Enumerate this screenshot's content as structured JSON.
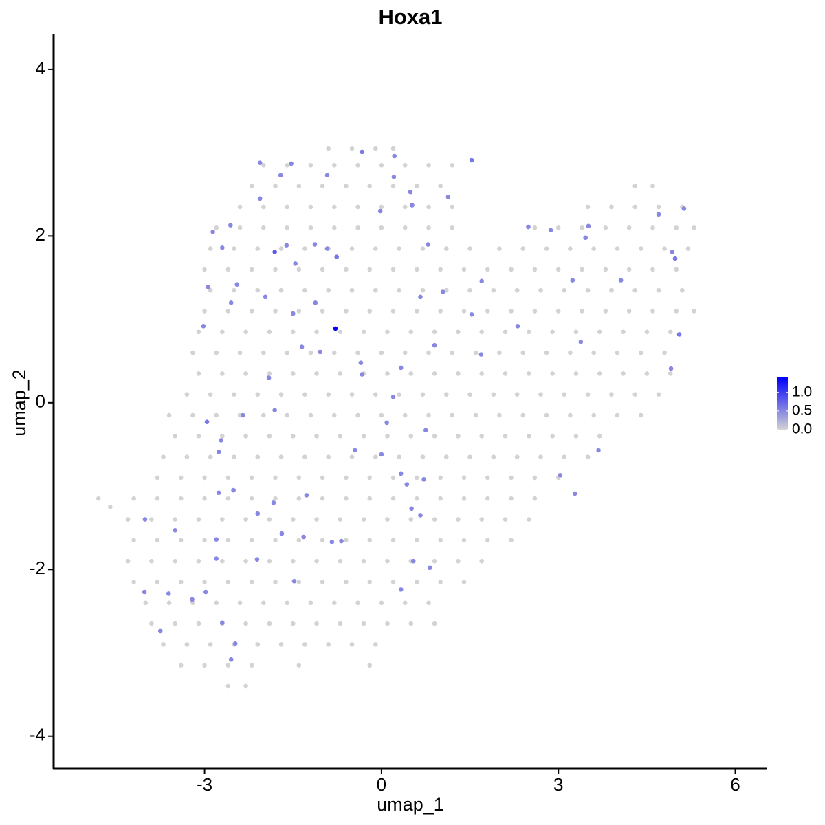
{
  "chart_data": {
    "type": "scatter",
    "title": "Hoxa1",
    "xlabel": "umap_1",
    "ylabel": "umap_2",
    "xlim": [
      -5.56,
      6.53
    ],
    "ylim": [
      -4.39,
      4.42
    ],
    "xticks": [
      -3,
      0,
      3,
      6
    ],
    "yticks": [
      -4,
      -2,
      0,
      2,
      4
    ],
    "colorbar": {
      "lim": [
        0,
        1.4
      ],
      "low": "#d3d3d3",
      "high": "#0000ff",
      "ticks": [
        {
          "value": 0,
          "label": "0.0"
        },
        {
          "value": 0.5,
          "label": "0.5"
        },
        {
          "value": 1,
          "label": "1.0"
        }
      ]
    },
    "series": [
      {
        "x": [
          -0.9,
          -0.5,
          -0.1,
          0.2,
          -2.0,
          -1.6,
          -1.2,
          -0.8,
          -0.4,
          0.0,
          0.4,
          0.8,
          1.2,
          -2.2,
          -1.8,
          -1.4,
          -1.0,
          -0.6,
          -0.2,
          0.2,
          0.6,
          1.0,
          4.3,
          4.6,
          -2.4,
          -2.0,
          -1.6,
          -1.2,
          -0.8,
          -0.4,
          0.0,
          0.4,
          0.8,
          1.2,
          3.5,
          3.9,
          4.3,
          4.7,
          5.1,
          -2.8,
          -2.4,
          -2.0,
          -1.6,
          -1.2,
          -0.8,
          -0.4,
          0.0,
          0.4,
          0.8,
          1.2,
          2.6,
          3.0,
          3.4,
          3.8,
          4.2,
          4.6,
          5.0,
          5.3,
          -2.9,
          -2.5,
          -2.1,
          -1.7,
          -1.3,
          -0.9,
          -0.5,
          -0.1,
          0.3,
          0.7,
          1.1,
          1.5,
          2.0,
          2.4,
          2.8,
          3.2,
          3.6,
          4.0,
          4.4,
          4.8,
          5.2,
          -3.0,
          -2.6,
          -2.2,
          -1.8,
          -1.4,
          -1.0,
          -0.6,
          -0.2,
          0.2,
          0.6,
          1.0,
          1.4,
          1.8,
          2.2,
          2.6,
          3.0,
          3.4,
          3.8,
          4.2,
          4.6,
          5.0,
          -2.9,
          -2.5,
          -2.1,
          -1.7,
          -1.3,
          -0.9,
          -0.5,
          -0.1,
          0.3,
          0.7,
          1.1,
          1.5,
          1.9,
          2.3,
          2.7,
          3.1,
          3.5,
          3.9,
          4.3,
          4.7,
          5.1,
          -3.0,
          -2.6,
          -2.2,
          -1.8,
          -1.4,
          -1.0,
          -0.6,
          -0.2,
          0.2,
          0.6,
          1.0,
          1.4,
          1.8,
          2.2,
          2.6,
          3.0,
          3.4,
          3.8,
          4.2,
          4.6,
          5.0,
          5.3,
          -3.1,
          -2.7,
          -2.3,
          -1.9,
          -1.5,
          -1.1,
          -0.7,
          -0.3,
          0.1,
          0.5,
          0.9,
          1.3,
          1.7,
          2.1,
          2.5,
          2.9,
          3.3,
          3.7,
          4.1,
          4.5,
          4.9,
          -3.2,
          -2.8,
          -2.4,
          -2.0,
          -1.6,
          -1.2,
          -0.8,
          -0.4,
          0.0,
          0.4,
          0.8,
          1.2,
          1.6,
          2.0,
          2.4,
          2.8,
          3.2,
          3.6,
          4.0,
          4.4,
          4.8,
          -3.1,
          -2.7,
          -2.3,
          -1.9,
          -1.5,
          -1.1,
          -0.7,
          -0.3,
          0.1,
          0.5,
          0.9,
          1.3,
          1.7,
          2.1,
          2.5,
          2.9,
          3.3,
          3.7,
          4.1,
          4.5,
          4.9,
          -3.3,
          -2.9,
          -2.5,
          -2.1,
          -1.7,
          -1.3,
          -0.9,
          -0.5,
          -0.1,
          0.3,
          0.7,
          1.1,
          1.5,
          1.9,
          2.3,
          2.7,
          3.1,
          3.5,
          3.9,
          4.3,
          4.7,
          -3.6,
          -3.2,
          -2.8,
          -2.4,
          -2.0,
          -1.6,
          -1.2,
          -0.8,
          -0.4,
          0.0,
          0.4,
          0.8,
          1.2,
          1.6,
          2.0,
          2.4,
          2.8,
          3.2,
          3.6,
          4.0,
          4.4,
          -3.5,
          -3.1,
          -2.7,
          -2.3,
          -1.9,
          -1.5,
          -1.1,
          -0.7,
          -0.3,
          0.1,
          0.5,
          0.9,
          1.3,
          1.7,
          2.1,
          2.5,
          2.9,
          3.3,
          3.7,
          -3.7,
          -3.3,
          -2.9,
          -2.5,
          -2.1,
          -1.7,
          -1.3,
          -0.9,
          -0.5,
          -0.1,
          0.3,
          0.7,
          1.1,
          1.5,
          1.9,
          2.3,
          2.7,
          3.1,
          3.5,
          -3.8,
          -3.4,
          -3.0,
          -2.6,
          -2.2,
          -1.8,
          -1.4,
          -1.0,
          -0.6,
          -0.2,
          0.2,
          0.6,
          1.0,
          1.4,
          1.8,
          2.2,
          2.6,
          3.0,
          -4.8,
          -4.6,
          -4.2,
          -3.8,
          -3.4,
          -3.0,
          -2.6,
          -2.2,
          -1.8,
          -1.4,
          -1.0,
          -0.6,
          -0.2,
          0.2,
          0.6,
          1.0,
          1.4,
          1.8,
          2.2,
          2.6,
          -4.3,
          -3.9,
          -3.5,
          -3.1,
          -2.7,
          -2.3,
          -1.9,
          -1.5,
          -1.1,
          -0.7,
          -0.3,
          0.1,
          0.5,
          0.9,
          1.3,
          1.7,
          2.1,
          2.5,
          -4.2,
          -3.8,
          -3.4,
          -3.0,
          -2.6,
          -2.2,
          -1.8,
          -1.4,
          -1.0,
          -0.6,
          -0.2,
          0.2,
          0.6,
          1.0,
          1.4,
          1.8,
          2.2,
          -4.3,
          -3.9,
          -3.5,
          -3.1,
          -2.7,
          -2.3,
          -1.9,
          -1.5,
          -1.1,
          -0.7,
          -0.3,
          0.1,
          0.5,
          0.9,
          1.3,
          1.7,
          -4.2,
          -3.8,
          -3.4,
          -3.0,
          -2.6,
          -2.2,
          -1.8,
          -1.4,
          -1.0,
          -0.6,
          -0.2,
          0.2,
          0.6,
          1.0,
          1.4,
          -4.0,
          -3.6,
          -3.2,
          -2.8,
          -2.4,
          -2.0,
          -1.6,
          -1.2,
          -0.8,
          -0.4,
          0.0,
          0.4,
          0.8,
          -3.9,
          -3.5,
          -3.1,
          -2.7,
          -2.3,
          -1.9,
          -1.5,
          -1.1,
          -0.7,
          -0.3,
          0.1,
          0.5,
          0.9,
          -3.7,
          -3.3,
          -2.9,
          -2.5,
          -2.1,
          -1.7,
          -1.3,
          -0.9,
          -0.5,
          -0.1,
          -3.4,
          -3.0,
          -2.6,
          -2.2,
          -1.4,
          -0.2,
          -2.6,
          -2.3
        ],
        "y": [
          3.05,
          3.05,
          3.05,
          3.05,
          2.85,
          2.85,
          2.85,
          2.85,
          2.85,
          2.85,
          2.85,
          2.85,
          2.85,
          2.6,
          2.6,
          2.6,
          2.6,
          2.6,
          2.6,
          2.6,
          2.6,
          2.6,
          2.6,
          2.6,
          2.35,
          2.35,
          2.35,
          2.35,
          2.35,
          2.35,
          2.35,
          2.35,
          2.35,
          2.35,
          2.35,
          2.35,
          2.35,
          2.35,
          2.35,
          2.1,
          2.1,
          2.1,
          2.1,
          2.1,
          2.1,
          2.1,
          2.1,
          2.1,
          2.1,
          2.1,
          2.1,
          2.1,
          2.1,
          2.1,
          2.1,
          2.1,
          2.1,
          2.1,
          1.85,
          1.85,
          1.85,
          1.85,
          1.85,
          1.85,
          1.85,
          1.85,
          1.85,
          1.85,
          1.85,
          1.85,
          1.85,
          1.85,
          1.85,
          1.85,
          1.85,
          1.85,
          1.85,
          1.85,
          1.85,
          1.6,
          1.6,
          1.6,
          1.6,
          1.6,
          1.6,
          1.6,
          1.6,
          1.6,
          1.6,
          1.6,
          1.6,
          1.6,
          1.6,
          1.6,
          1.6,
          1.6,
          1.6,
          1.6,
          1.6,
          1.6,
          1.35,
          1.35,
          1.35,
          1.35,
          1.35,
          1.35,
          1.35,
          1.35,
          1.35,
          1.35,
          1.35,
          1.35,
          1.35,
          1.35,
          1.35,
          1.35,
          1.35,
          1.35,
          1.35,
          1.35,
          1.35,
          1.1,
          1.1,
          1.1,
          1.1,
          1.1,
          1.1,
          1.1,
          1.1,
          1.1,
          1.1,
          1.1,
          1.1,
          1.1,
          1.1,
          1.1,
          1.1,
          1.1,
          1.1,
          1.1,
          1.1,
          1.1,
          1.1,
          0.85,
          0.85,
          0.85,
          0.85,
          0.85,
          0.85,
          0.85,
          0.85,
          0.85,
          0.85,
          0.85,
          0.85,
          0.85,
          0.85,
          0.85,
          0.85,
          0.85,
          0.85,
          0.85,
          0.85,
          0.85,
          0.6,
          0.6,
          0.6,
          0.6,
          0.6,
          0.6,
          0.6,
          0.6,
          0.6,
          0.6,
          0.6,
          0.6,
          0.6,
          0.6,
          0.6,
          0.6,
          0.6,
          0.6,
          0.6,
          0.6,
          0.6,
          0.35,
          0.35,
          0.35,
          0.35,
          0.35,
          0.35,
          0.35,
          0.35,
          0.35,
          0.35,
          0.35,
          0.35,
          0.35,
          0.35,
          0.35,
          0.35,
          0.35,
          0.35,
          0.35,
          0.35,
          0.35,
          0.1,
          0.1,
          0.1,
          0.1,
          0.1,
          0.1,
          0.1,
          0.1,
          0.1,
          0.1,
          0.1,
          0.1,
          0.1,
          0.1,
          0.1,
          0.1,
          0.1,
          0.1,
          0.1,
          0.1,
          0.1,
          -0.15,
          -0.15,
          -0.15,
          -0.15,
          -0.15,
          -0.15,
          -0.15,
          -0.15,
          -0.15,
          -0.15,
          -0.15,
          -0.15,
          -0.15,
          -0.15,
          -0.15,
          -0.15,
          -0.15,
          -0.15,
          -0.15,
          -0.15,
          -0.15,
          -0.4,
          -0.4,
          -0.4,
          -0.4,
          -0.4,
          -0.4,
          -0.4,
          -0.4,
          -0.4,
          -0.4,
          -0.4,
          -0.4,
          -0.4,
          -0.4,
          -0.4,
          -0.4,
          -0.4,
          -0.4,
          -0.4,
          -0.65,
          -0.65,
          -0.65,
          -0.65,
          -0.65,
          -0.65,
          -0.65,
          -0.65,
          -0.65,
          -0.65,
          -0.65,
          -0.65,
          -0.65,
          -0.65,
          -0.65,
          -0.65,
          -0.65,
          -0.65,
          -0.65,
          -0.9,
          -0.9,
          -0.9,
          -0.9,
          -0.9,
          -0.9,
          -0.9,
          -0.9,
          -0.9,
          -0.9,
          -0.9,
          -0.9,
          -0.9,
          -0.9,
          -0.9,
          -0.9,
          -0.9,
          -0.9,
          -1.15,
          -1.25,
          -1.15,
          -1.15,
          -1.15,
          -1.15,
          -1.15,
          -1.15,
          -1.15,
          -1.15,
          -1.15,
          -1.15,
          -1.15,
          -1.15,
          -1.15,
          -1.15,
          -1.15,
          -1.15,
          -1.15,
          -1.15,
          -1.4,
          -1.4,
          -1.4,
          -1.4,
          -1.4,
          -1.4,
          -1.4,
          -1.4,
          -1.4,
          -1.4,
          -1.4,
          -1.4,
          -1.4,
          -1.4,
          -1.4,
          -1.4,
          -1.4,
          -1.4,
          -1.65,
          -1.65,
          -1.65,
          -1.65,
          -1.65,
          -1.65,
          -1.65,
          -1.65,
          -1.65,
          -1.65,
          -1.65,
          -1.65,
          -1.65,
          -1.65,
          -1.65,
          -1.65,
          -1.65,
          -1.9,
          -1.9,
          -1.9,
          -1.9,
          -1.9,
          -1.9,
          -1.9,
          -1.9,
          -1.9,
          -1.9,
          -1.9,
          -1.9,
          -1.9,
          -1.9,
          -1.9,
          -1.9,
          -2.15,
          -2.15,
          -2.15,
          -2.15,
          -2.15,
          -2.15,
          -2.15,
          -2.15,
          -2.15,
          -2.15,
          -2.15,
          -2.15,
          -2.15,
          -2.15,
          -2.15,
          -2.4,
          -2.4,
          -2.4,
          -2.4,
          -2.4,
          -2.4,
          -2.4,
          -2.4,
          -2.4,
          -2.4,
          -2.4,
          -2.4,
          -2.4,
          -2.65,
          -2.65,
          -2.65,
          -2.65,
          -2.65,
          -2.65,
          -2.65,
          -2.65,
          -2.65,
          -2.65,
          -2.65,
          -2.65,
          -2.65,
          -2.9,
          -2.9,
          -2.9,
          -2.9,
          -2.9,
          -2.9,
          -2.9,
          -2.9,
          -2.9,
          -2.9,
          -3.15,
          -3.15,
          -3.15,
          -3.15,
          -3.15,
          -3.15,
          -3.4,
          -3.4
        ]
      },
      {
        "x": [
          -0.78,
          1.53,
          -0.33,
          0.22,
          -2.06,
          -1.53,
          -1.71,
          -0.92,
          0.21,
          -2.06,
          0.49,
          1.13,
          0.52,
          -0.02,
          -2.86,
          -2.56,
          -2.7,
          -1.81,
          -1.61,
          -1.13,
          -0.92,
          -0.76,
          0.79,
          -1.46,
          -2.94,
          -2.45,
          -1.97,
          -2.55,
          -1.12,
          -1.5,
          -3.02,
          -1.35,
          -1.04,
          -0.35,
          -0.33,
          -1.91,
          -2.35,
          -2.96,
          -1.81,
          -2.72,
          -2.76,
          0.2,
          0.09,
          -0.45,
          0,
          0.33,
          0.43,
          0.72,
          0.75,
          0.33,
          0.66,
          1.04,
          0.9,
          1.53,
          1.7,
          1.69,
          2.31,
          2.49,
          2.87,
          3.51,
          3.46,
          3.24,
          3.38,
          4.06,
          4.7,
          5.13,
          4.93,
          4.98,
          5.05,
          4.91,
          3.68,
          3.03,
          3.28,
          -1.27,
          -2.51,
          -2.76,
          -2.1,
          -1.83,
          -3.5,
          -4.01,
          -1.69,
          -1.32,
          -0.84,
          -0.68,
          0.51,
          0.66,
          0.54,
          0.82,
          0.33,
          -1.48,
          -2.11,
          -2.8,
          -2.8,
          -2.98,
          -3.61,
          -4.02,
          -3.21,
          -3.75,
          -2.7,
          -2.48,
          -2.55
        ],
        "y": [
          0.89,
          2.91,
          3.01,
          2.96,
          2.88,
          2.87,
          2.73,
          2.73,
          2.71,
          2.45,
          2.53,
          2.47,
          2.37,
          2.3,
          2.05,
          2.13,
          1.86,
          1.81,
          1.89,
          1.9,
          1.85,
          1.75,
          1.9,
          1.67,
          1.39,
          1.42,
          1.27,
          1.2,
          1.2,
          1.07,
          0.92,
          0.67,
          0.61,
          0.48,
          0.34,
          0.3,
          -0.15,
          -0.23,
          -0.09,
          -0.45,
          -0.59,
          0.07,
          -0.24,
          -0.57,
          -0.62,
          -0.85,
          -0.98,
          -0.92,
          -0.33,
          0.42,
          1.27,
          1.33,
          0.69,
          1.06,
          1.46,
          0.58,
          0.92,
          2.11,
          2.07,
          2.12,
          1.98,
          1.47,
          0.73,
          1.47,
          2.26,
          2.33,
          1.81,
          1.73,
          0.82,
          0.41,
          -0.57,
          -0.87,
          -1.09,
          -1.11,
          -1.05,
          -1.08,
          -1.33,
          -1.2,
          -1.53,
          -1.4,
          -1.57,
          -1.61,
          -1.67,
          -1.66,
          -1.27,
          -1.35,
          -1.9,
          -1.98,
          -2.24,
          -2.14,
          -1.88,
          -1.64,
          -1.87,
          -2.27,
          -2.29,
          -2.27,
          -2.36,
          -2.74,
          -2.64,
          -2.89,
          -3.08
        ],
        "values": [
          1.4,
          0.6,
          0.6,
          0.5,
          0.5,
          0.5,
          0.5,
          0.5,
          0.5,
          0.5,
          0.5,
          0.5,
          0.5,
          0.5,
          0.5,
          0.5,
          0.5,
          0.8,
          0.5,
          0.5,
          0.5,
          0.6,
          0.5,
          0.5,
          0.5,
          0.5,
          0.5,
          0.5,
          0.5,
          0.5,
          0.5,
          0.5,
          0.5,
          0.5,
          0.5,
          0.5,
          0.5,
          0.6,
          0.5,
          0.5,
          0.5,
          0.5,
          0.5,
          0.5,
          0.5,
          0.5,
          0.5,
          0.5,
          0.5,
          0.5,
          0.5,
          0.5,
          0.5,
          0.5,
          0.5,
          0.5,
          0.5,
          0.5,
          0.5,
          0.5,
          0.5,
          0.5,
          0.5,
          0.5,
          0.5,
          0.5,
          0.5,
          0.6,
          0.6,
          0.5,
          0.5,
          0.5,
          0.5,
          0.5,
          0.5,
          0.5,
          0.5,
          0.5,
          0.5,
          0.5,
          0.5,
          0.5,
          0.5,
          0.5,
          0.5,
          0.5,
          0.5,
          0.5,
          0.5,
          0.5,
          0.5,
          0.5,
          0.5,
          0.5,
          0.5,
          0.5,
          0.5,
          0.5,
          0.5,
          0.5,
          0.5
        ]
      }
    ]
  }
}
